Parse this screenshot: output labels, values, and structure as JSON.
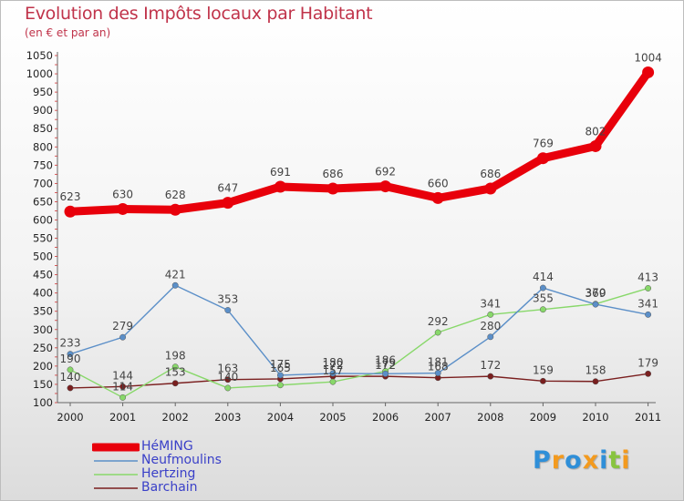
{
  "chart_data": {
    "type": "line",
    "title": "Evolution des Impôts locaux par Habitant",
    "subtitle": "(en € et par an)",
    "x": [
      "2000",
      "2001",
      "2002",
      "2003",
      "2004",
      "2005",
      "2006",
      "2007",
      "2008",
      "2009",
      "2010",
      "2011"
    ],
    "ylim": [
      100,
      1050
    ],
    "yticks": [
      "100",
      "150",
      "200",
      "250",
      "300",
      "350",
      "400",
      "450",
      "500",
      "550",
      "600",
      "650",
      "700",
      "750",
      "800",
      "850",
      "900",
      "950",
      "1000",
      "1050"
    ],
    "grid": false,
    "legend": "bottom-left",
    "series": [
      {
        "name": "HéMING",
        "color": "#e8000b",
        "values": [
          623,
          630,
          628,
          647,
          691,
          686,
          692,
          660,
          686,
          769,
          802,
          1004
        ],
        "labels": [
          "623",
          "630",
          "628",
          "647",
          "691",
          "686",
          "692",
          "660",
          "686",
          "769",
          "802",
          "1004"
        ]
      },
      {
        "name": "Neufmoulins",
        "color": "#5b8fc8",
        "values": [
          233,
          279,
          421,
          353,
          175,
          180,
          179,
          181,
          280,
          414,
          369,
          341
        ],
        "labels": [
          "233",
          "279",
          "421",
          "353",
          "175",
          "180",
          "179",
          "181",
          "280",
          "414",
          "369",
          "341"
        ]
      },
      {
        "name": "Hertzing",
        "color": "#88d86a",
        "values": [
          190,
          114,
          198,
          140,
          148,
          157,
          186,
          292,
          341,
          355,
          370,
          413
        ],
        "labels": [
          "190",
          "114",
          "198",
          "140",
          "",
          "157",
          "186",
          "292",
          "341",
          "355",
          "370",
          "413"
        ]
      },
      {
        "name": "Barchain",
        "color": "#7a1f1f",
        "values": [
          140,
          144,
          153,
          163,
          165,
          172,
          172,
          168,
          172,
          159,
          158,
          179
        ],
        "labels": [
          "140",
          "144",
          "153",
          "163",
          "165",
          "172",
          "172",
          "168",
          "172",
          "159",
          "158",
          "179"
        ]
      }
    ]
  },
  "logo": {
    "text": "Proxiti",
    "letters": [
      {
        "ch": "P",
        "color": "#2f8fd8"
      },
      {
        "ch": "r",
        "color": "#f39a1e"
      },
      {
        "ch": "o",
        "color": "#2f8fd8"
      },
      {
        "ch": "x",
        "color": "#f39a1e"
      },
      {
        "ch": "i",
        "color": "#2f8fd8"
      },
      {
        "ch": "t",
        "color": "#88c43f"
      },
      {
        "ch": "i",
        "color": "#f39a1e"
      }
    ]
  }
}
